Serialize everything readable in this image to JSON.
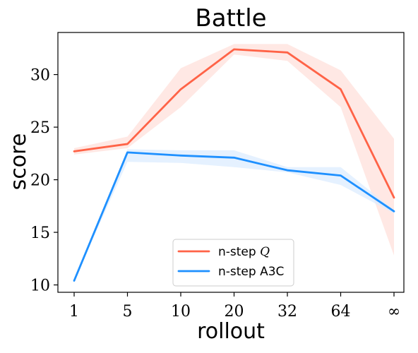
{
  "chart_data": {
    "type": "line",
    "title": "Battle",
    "xlabel": "rollout",
    "ylabel": "score",
    "categories": [
      "1",
      "5",
      "10",
      "20",
      "32",
      "64",
      "∞"
    ],
    "ylim": [
      9.3,
      34.0
    ],
    "yticks": [
      10,
      15,
      20,
      25,
      30
    ],
    "grid": false,
    "legend_position": "bottom-center",
    "series": [
      {
        "name": "n-step Q",
        "label_prefix": "n-step ",
        "label_math": "Q",
        "color": "#ff6347",
        "band_color": "#ffe0db",
        "values": [
          22.7,
          23.4,
          28.6,
          32.4,
          32.1,
          28.6,
          18.3
        ],
        "lower": [
          22.4,
          23.0,
          26.9,
          31.9,
          31.3,
          26.9,
          12.8
        ],
        "upper": [
          23.0,
          24.1,
          30.6,
          32.9,
          32.9,
          30.4,
          23.9
        ]
      },
      {
        "name": "n-step A3C",
        "label_prefix": "n-step A3C",
        "label_math": "",
        "color": "#1e90ff",
        "band_color": "#dcecff",
        "values": [
          10.4,
          22.6,
          22.3,
          22.1,
          20.9,
          20.4,
          17.0
        ],
        "lower": [
          10.4,
          21.7,
          21.6,
          21.2,
          20.7,
          19.5,
          16.8
        ],
        "upper": [
          10.4,
          22.9,
          22.8,
          22.8,
          21.2,
          21.2,
          17.1
        ]
      }
    ]
  }
}
